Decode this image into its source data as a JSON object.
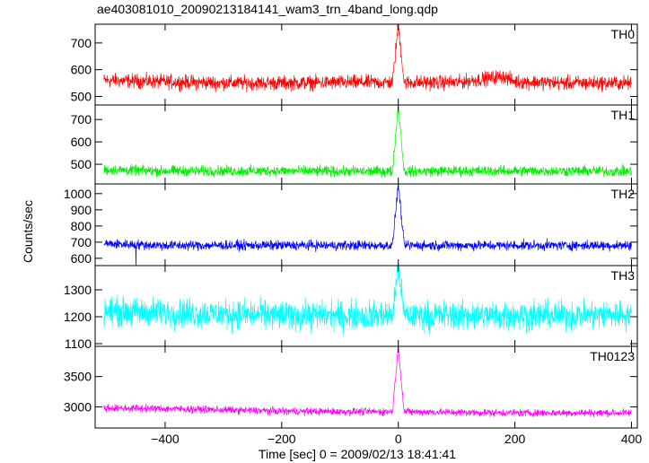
{
  "chart_data": {
    "type": "line",
    "title": "ae403081010_20090213184141_wam3_trn_4band_long.qdp",
    "xlabel": "Time [sec] 0 = 2009/02/13 18:41:41",
    "ylabel": "Counts/sec",
    "xlim": [
      -520,
      410
    ],
    "x_ticks": [
      -400,
      -200,
      0,
      200,
      400
    ],
    "colors": {
      "TH0": "#ff0000",
      "TH1": "#00ee00",
      "TH2": "#0000ff",
      "TH3": "#00ffff",
      "TH0123": "#ff00ff"
    },
    "series": [
      {
        "name": "TH0",
        "ylim": [
          468,
          770
        ],
        "y_ticks": [
          500,
          600,
          700
        ],
        "x": [
          -500,
          -400,
          -300,
          -200,
          -100,
          -10,
          0,
          10,
          100,
          180,
          200,
          300,
          400
        ],
        "values": [
          560,
          555,
          550,
          550,
          552,
          552,
          770,
          552,
          552,
          575,
          555,
          550,
          550
        ]
      },
      {
        "name": "TH1",
        "ylim": [
          412,
          765
        ],
        "y_ticks": [
          500,
          600,
          700
        ],
        "x": [
          -500,
          -400,
          -300,
          -200,
          -100,
          -10,
          0,
          10,
          100,
          200,
          300,
          400
        ],
        "values": [
          475,
          470,
          470,
          470,
          468,
          468,
          765,
          468,
          470,
          470,
          470,
          468
        ]
      },
      {
        "name": "TH2",
        "ylim": [
          555,
          1060
        ],
        "y_ticks": [
          600,
          700,
          800,
          900,
          1000
        ],
        "x": [
          -500,
          -400,
          -300,
          -200,
          -100,
          -10,
          0,
          10,
          100,
          200,
          300,
          400
        ],
        "values": [
          690,
          680,
          680,
          680,
          680,
          680,
          1060,
          680,
          680,
          680,
          680,
          680
        ],
        "x_dip": -450
      },
      {
        "name": "TH3",
        "ylim": [
          1090,
          1390
        ],
        "y_ticks": [
          1100,
          1200,
          1300
        ],
        "x": [
          -500,
          -400,
          -300,
          -200,
          -100,
          -10,
          0,
          10,
          100,
          200,
          300,
          400
        ],
        "values": [
          1220,
          1215,
          1210,
          1205,
          1205,
          1205,
          1390,
          1205,
          1205,
          1205,
          1205,
          1210
        ]
      },
      {
        "name": "TH0123",
        "ylim": [
          2650,
          4000
        ],
        "y_ticks": [
          3000,
          3500
        ],
        "x": [
          -500,
          -400,
          -300,
          -200,
          -100,
          -10,
          0,
          10,
          100,
          200,
          300,
          400
        ],
        "values": [
          2980,
          2970,
          2950,
          2930,
          2920,
          2920,
          4000,
          2920,
          2910,
          2900,
          2900,
          2900
        ]
      }
    ]
  }
}
